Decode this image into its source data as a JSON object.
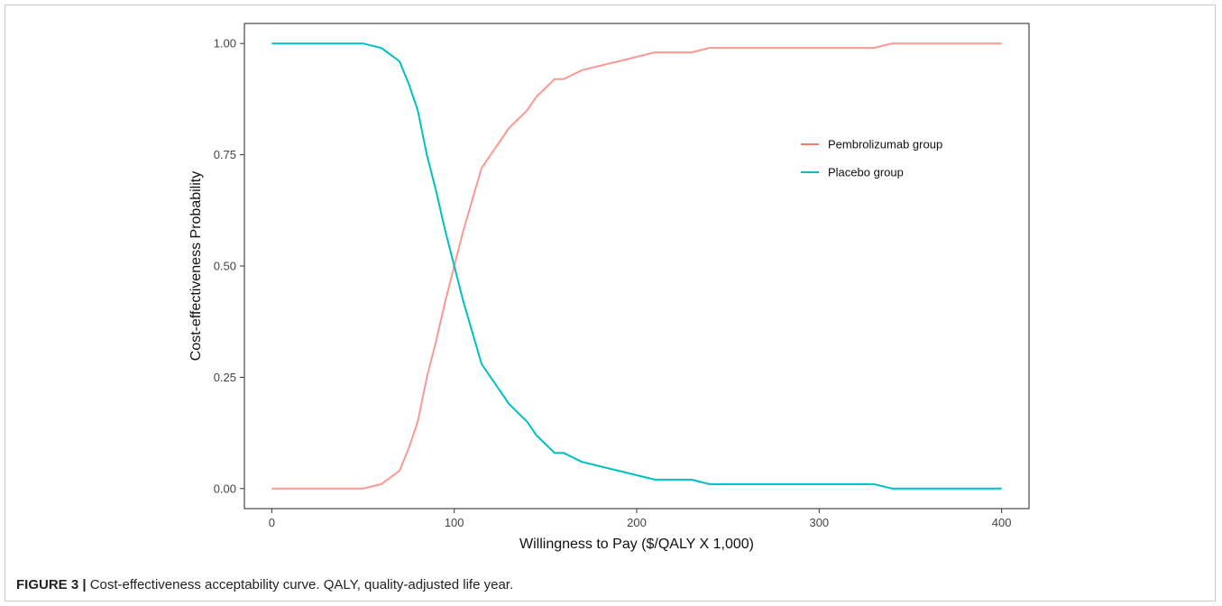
{
  "caption": {
    "label": "FIGURE 3 |",
    "text": "Cost-effectiveness acceptability curve. QALY, quality-adjusted life year."
  },
  "chart_data": {
    "type": "line",
    "title": "",
    "xlabel": "Willingness to Pay ($/QALY X 1,000)",
    "ylabel": "Cost-effectiveness Probability",
    "xlim": [
      -15,
      415
    ],
    "ylim": [
      -0.045,
      1.045
    ],
    "xticks": [
      0,
      100,
      200,
      300,
      400
    ],
    "yticks": [
      0.0,
      0.25,
      0.5,
      0.75,
      1.0
    ],
    "ytick_labels": [
      "0.00",
      "0.25",
      "0.50",
      "0.75",
      "1.00"
    ],
    "grid": false,
    "legend_position": "top-right",
    "x": [
      0,
      10,
      20,
      30,
      40,
      50,
      55,
      60,
      65,
      70,
      75,
      80,
      85,
      90,
      95,
      100,
      105,
      110,
      115,
      120,
      125,
      130,
      135,
      140,
      145,
      150,
      155,
      160,
      170,
      180,
      190,
      200,
      210,
      220,
      230,
      240,
      250,
      260,
      270,
      280,
      290,
      300,
      310,
      320,
      330,
      340,
      350,
      360,
      370,
      380,
      390,
      400
    ],
    "series": [
      {
        "name": "Pembrolizumab group",
        "color": "#F8766D",
        "values": [
          0.0,
          0.0,
          0.0,
          0.0,
          0.0,
          0.0,
          0.005,
          0.01,
          0.025,
          0.04,
          0.09,
          0.15,
          0.25,
          0.33,
          0.42,
          0.5,
          0.58,
          0.65,
          0.72,
          0.75,
          0.78,
          0.81,
          0.83,
          0.85,
          0.88,
          0.9,
          0.92,
          0.92,
          0.94,
          0.95,
          0.96,
          0.97,
          0.98,
          0.98,
          0.98,
          0.99,
          0.99,
          0.99,
          0.99,
          0.99,
          0.99,
          0.99,
          0.99,
          0.99,
          0.99,
          1.0,
          1.0,
          1.0,
          1.0,
          1.0,
          1.0,
          1.0
        ]
      },
      {
        "name": "Placebo group",
        "color": "#00BFC4",
        "values": [
          1.0,
          1.0,
          1.0,
          1.0,
          1.0,
          1.0,
          0.995,
          0.99,
          0.975,
          0.96,
          0.91,
          0.85,
          0.75,
          0.67,
          0.58,
          0.5,
          0.42,
          0.35,
          0.28,
          0.25,
          0.22,
          0.19,
          0.17,
          0.15,
          0.12,
          0.1,
          0.08,
          0.08,
          0.06,
          0.05,
          0.04,
          0.03,
          0.02,
          0.02,
          0.02,
          0.01,
          0.01,
          0.01,
          0.01,
          0.01,
          0.01,
          0.01,
          0.01,
          0.01,
          0.01,
          0.0,
          0.0,
          0.0,
          0.0,
          0.0,
          0.0,
          0.0
        ]
      }
    ]
  }
}
